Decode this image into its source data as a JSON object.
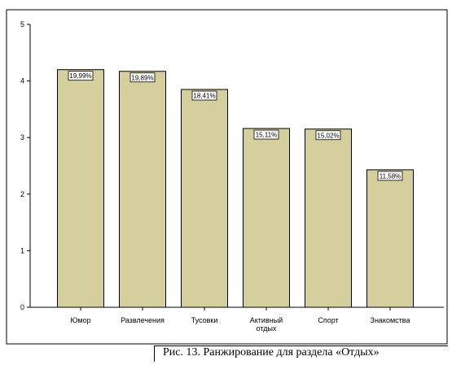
{
  "chart_data": {
    "type": "bar",
    "categories": [
      "Юмор",
      "Развлечения",
      "Тусовки",
      "Активный отдых",
      "Спорт",
      "Знакомства"
    ],
    "category_lines": [
      [
        "Юмор"
      ],
      [
        "Развлечения"
      ],
      [
        "Тусовки"
      ],
      [
        "Активный",
        "отдых"
      ],
      [
        "Спорт"
      ],
      [
        "Знакомства"
      ]
    ],
    "values": [
      4.2,
      4.17,
      3.85,
      3.16,
      3.15,
      2.43
    ],
    "data_labels": [
      "19,99%",
      "19,89%",
      "18,41%",
      "15,11%",
      "15,02%",
      "11,58%"
    ],
    "y_ticks": [
      "0",
      "1",
      "2",
      "3",
      "4",
      "5"
    ],
    "ylim": [
      0,
      5
    ],
    "grid": false,
    "bar_color": "#d4cf9c",
    "title": "",
    "xlabel": "",
    "ylabel": ""
  },
  "caption": "Рис. 13. Ранжирование для раздела «Отдых»"
}
